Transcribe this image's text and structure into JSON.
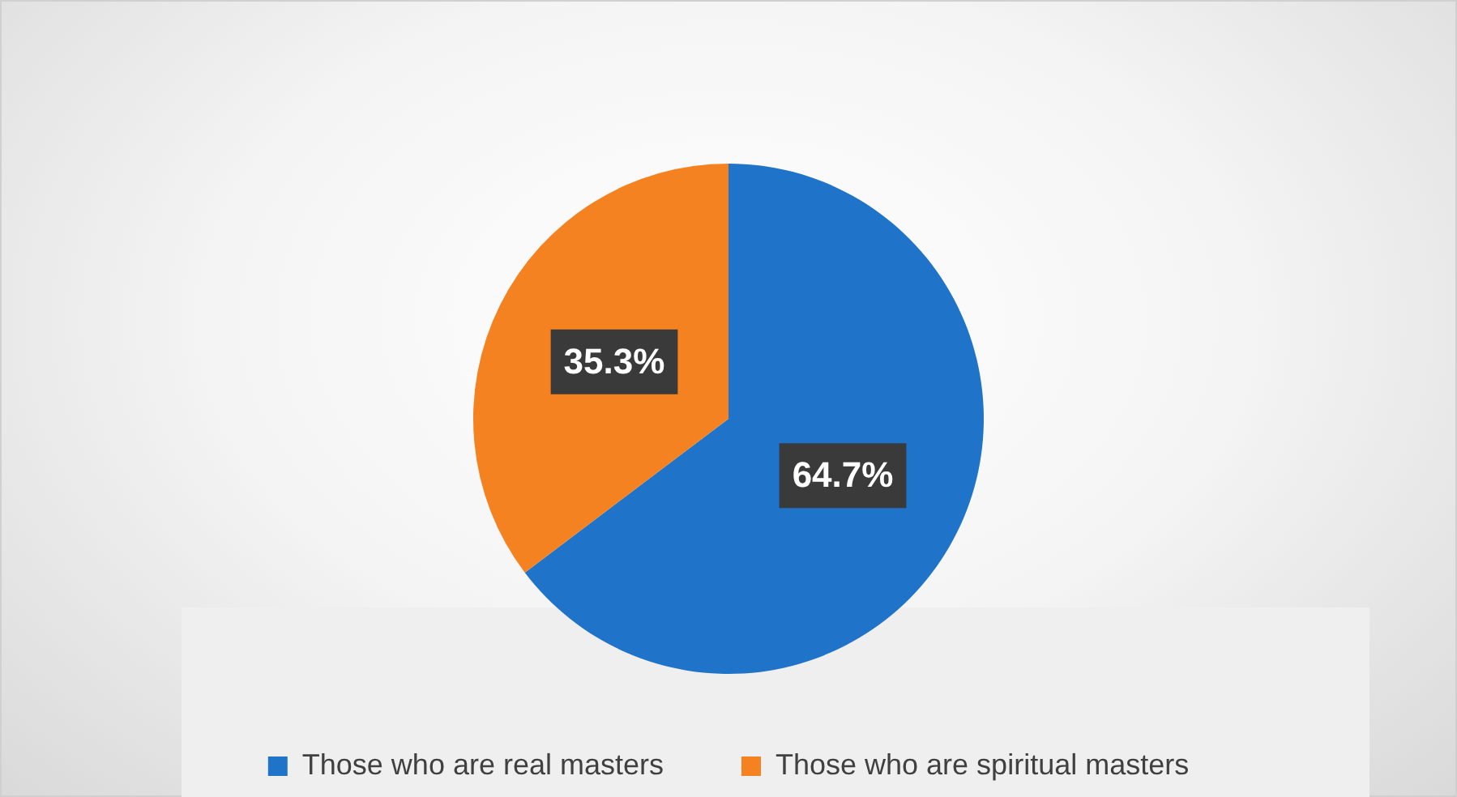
{
  "chart_data": {
    "type": "pie",
    "categories": [
      "Those who are real masters",
      "Those who are spiritual masters"
    ],
    "values": [
      64.7,
      35.3
    ],
    "colors": [
      "#1f73c9",
      "#f58220"
    ],
    "value_labels": [
      "64.7%",
      "35.3%"
    ],
    "legend": "bottom"
  }
}
